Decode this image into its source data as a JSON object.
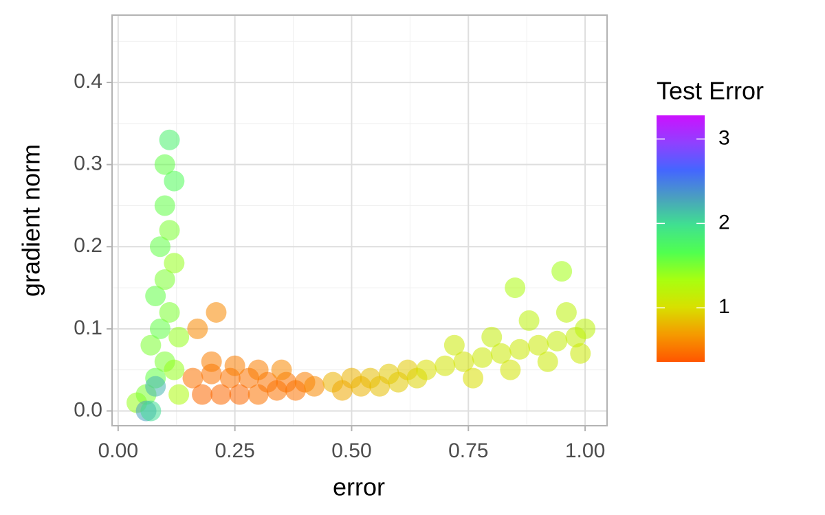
{
  "chart_data": {
    "type": "scatter",
    "x_label": "error",
    "y_label": "gradient norm",
    "x": [
      0.04,
      0.06,
      0.08,
      0.1,
      0.12,
      0.07,
      0.09,
      0.11,
      0.13,
      0.08,
      0.1,
      0.12,
      0.09,
      0.11,
      0.1,
      0.12,
      0.1,
      0.11,
      0.08,
      0.13,
      0.06,
      0.07,
      0.16,
      0.2,
      0.24,
      0.28,
      0.32,
      0.36,
      0.4,
      0.18,
      0.22,
      0.26,
      0.3,
      0.34,
      0.38,
      0.42,
      0.2,
      0.25,
      0.3,
      0.35,
      0.17,
      0.21,
      0.46,
      0.5,
      0.54,
      0.58,
      0.62,
      0.48,
      0.52,
      0.56,
      0.6,
      0.64,
      0.66,
      0.7,
      0.74,
      0.78,
      0.82,
      0.86,
      0.9,
      0.94,
      0.98,
      1.0,
      0.72,
      0.8,
      0.88,
      0.96,
      0.76,
      0.84,
      0.92,
      0.99,
      0.85,
      0.95
    ],
    "y": [
      0.01,
      0.02,
      0.04,
      0.06,
      0.05,
      0.08,
      0.1,
      0.12,
      0.09,
      0.14,
      0.16,
      0.18,
      0.2,
      0.22,
      0.25,
      0.28,
      0.3,
      0.33,
      0.03,
      0.02,
      0.0,
      0.0,
      0.04,
      0.045,
      0.04,
      0.04,
      0.035,
      0.035,
      0.035,
      0.02,
      0.02,
      0.02,
      0.02,
      0.025,
      0.025,
      0.03,
      0.06,
      0.055,
      0.05,
      0.05,
      0.1,
      0.12,
      0.035,
      0.04,
      0.04,
      0.045,
      0.05,
      0.025,
      0.03,
      0.03,
      0.035,
      0.04,
      0.05,
      0.055,
      0.06,
      0.065,
      0.07,
      0.075,
      0.08,
      0.085,
      0.09,
      0.1,
      0.08,
      0.09,
      0.11,
      0.12,
      0.04,
      0.05,
      0.06,
      0.07,
      0.15,
      0.17
    ],
    "color_values": [
      1.4,
      1.5,
      1.6,
      1.5,
      1.4,
      1.5,
      1.6,
      1.5,
      1.4,
      1.6,
      1.5,
      1.4,
      1.6,
      1.5,
      1.6,
      1.7,
      1.6,
      1.8,
      2.2,
      1.3,
      2.3,
      2.0,
      0.5,
      0.5,
      0.5,
      0.5,
      0.5,
      0.5,
      0.55,
      0.45,
      0.45,
      0.45,
      0.5,
      0.5,
      0.5,
      0.6,
      0.55,
      0.55,
      0.55,
      0.6,
      0.6,
      0.6,
      0.8,
      0.8,
      0.85,
      0.9,
      0.9,
      0.75,
      0.8,
      0.85,
      0.9,
      0.95,
      1.0,
      1.05,
      1.05,
      1.1,
      1.1,
      1.1,
      1.1,
      1.15,
      1.15,
      1.2,
      1.1,
      1.15,
      1.2,
      1.2,
      1.0,
      1.05,
      1.1,
      1.1,
      1.3,
      1.35
    ],
    "xlim": [
      -0.013,
      1.047
    ],
    "ylim": [
      -0.018,
      0.482
    ],
    "xticks": [
      {
        "value": 0,
        "label": "0.00"
      },
      0.25,
      {
        "value": 0.5,
        "label": "0.50"
      },
      0.75,
      {
        "value": 1,
        "label": "1.00"
      }
    ],
    "yticks": [
      {
        "value": 0,
        "label": "0.0"
      },
      0.1,
      0.2,
      0.3,
      0.4
    ],
    "minor_xticks": [
      0.125,
      0.375,
      0.625,
      0.875
    ],
    "minor_yticks": [
      0.05,
      0.15,
      0.25,
      0.35,
      0.45
    ],
    "grid": true,
    "colorbar": {
      "title": "Test Error",
      "lim": [
        0.36,
        3.28
      ],
      "ticks": [
        1,
        2,
        3
      ],
      "colormap": [
        "#ff5500",
        "#f59a00",
        "#d8e000",
        "#a8ff10",
        "#50ff50",
        "#40e090",
        "#4a9fc0",
        "#4466ff",
        "#9040ff",
        "#cc11ff"
      ]
    }
  }
}
